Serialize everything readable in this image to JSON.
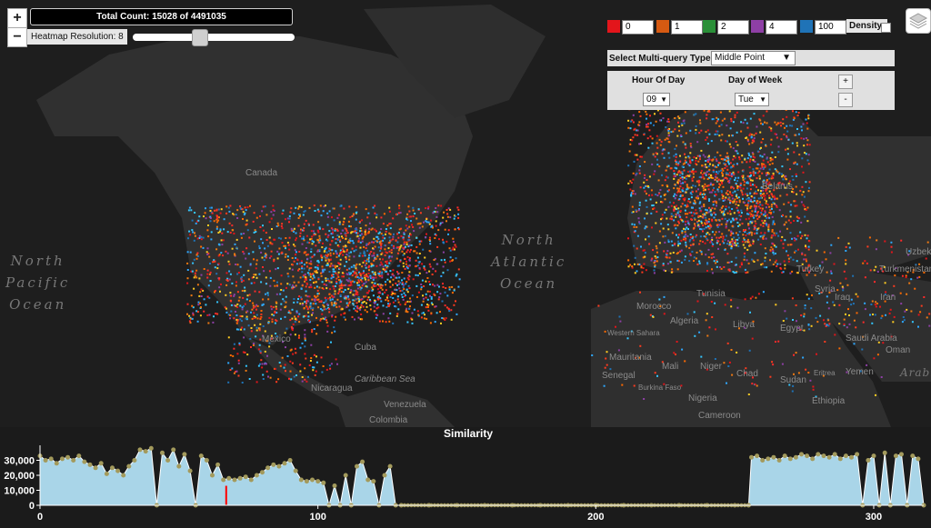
{
  "counter": {
    "text": "Total Count: 15028 of 4491035"
  },
  "zoom": {
    "in": "+",
    "out": "−"
  },
  "heatmap": {
    "label": "Heatmap Resolution: 8",
    "slider_value_fraction": 0.4
  },
  "legend": {
    "items": [
      {
        "color": "#e3151b",
        "value": "0"
      },
      {
        "color": "#d65a12",
        "value": "1"
      },
      {
        "color": "#2a8f38",
        "value": "2"
      },
      {
        "color": "#8e3fa5",
        "value": "4"
      },
      {
        "color": "#1f73b7",
        "value": "100"
      }
    ],
    "density_label": "Density:"
  },
  "multiquery": {
    "label": "Select Multi-query Type:",
    "selected": "Middle Point"
  },
  "time": {
    "hour_label": "Hour Of Day",
    "hour_value": "09",
    "day_label": "Day of Week",
    "day_value": "Tue",
    "plus": "+",
    "minus": "-"
  },
  "map_labels": {
    "canada": "Canada",
    "mexico": "Mexico",
    "cuba": "Cuba",
    "caribbean": "Caribbean Sea",
    "nicaragua": "Nicaragua",
    "venezuela": "Venezuela",
    "colombia": "Colombia",
    "north_pacific": [
      "North",
      "Pacific",
      "Ocean"
    ],
    "north_atlantic": [
      "North",
      "Atlantic",
      "Ocean"
    ],
    "morocco": "Morocco",
    "algeria": "Algeria",
    "libya": "Libya",
    "egypt": "Egypt",
    "tunisia": "Tunisia",
    "mauritania": "Mauritania",
    "mali": "Mali",
    "niger": "Niger",
    "chad": "Chad",
    "sudan": "Sudan",
    "senegal": "Senegal",
    "nigeria": "Nigeria",
    "ethiopia": "Ethiopia",
    "cameroon": "Cameroon",
    "eritrea": "Eritrea",
    "burkina": "Burkina Faso",
    "western_sahara": "Western Sahara",
    "turkey": "Turkey",
    "syria": "Syria",
    "iraq": "Iraq",
    "iran": "Iran",
    "saudi": "Saudi Arabia",
    "oman": "Oman",
    "yemen": "Yemen",
    "turkmenistan": "Turkmenistan",
    "uzbekistan": "Uzbek",
    "belarus": "Belarus",
    "arabian": "Arabi"
  },
  "chart_data": {
    "type": "area",
    "title": "Similarity",
    "x_ticks": [
      0,
      100,
      200,
      300
    ],
    "y_ticks": [
      0,
      10000,
      20000,
      30000
    ],
    "y_tick_labels": [
      "0",
      "10,000",
      "20,000",
      "30,000"
    ],
    "xlim": [
      0,
      318
    ],
    "ylim": [
      0,
      40000
    ],
    "fill_color": "#a9d5e8",
    "marker_color": "#a39a5c",
    "highlight_x": 67,
    "highlight_color": "#ff0000",
    "x": [
      0,
      2,
      4,
      6,
      8,
      10,
      12,
      14,
      16,
      18,
      20,
      22,
      24,
      26,
      28,
      30,
      32,
      34,
      36,
      38,
      40,
      42,
      44,
      46,
      48,
      50,
      52,
      54,
      56,
      58,
      60,
      62,
      64,
      66,
      68,
      70,
      72,
      74,
      76,
      78,
      80,
      82,
      84,
      86,
      88,
      90,
      92,
      94,
      96,
      98,
      100,
      102,
      104,
      106,
      108,
      110,
      112,
      114,
      116,
      118,
      120,
      122,
      124,
      126,
      128,
      130,
      140,
      150,
      160,
      170,
      180,
      190,
      200,
      210,
      220,
      230,
      240,
      250,
      255,
      256,
      258,
      260,
      262,
      264,
      266,
      268,
      270,
      272,
      274,
      276,
      278,
      280,
      282,
      284,
      286,
      288,
      290,
      292,
      294,
      296,
      298,
      300,
      302,
      304,
      306,
      308,
      310,
      312,
      314,
      316,
      318
    ],
    "y": [
      33000,
      30000,
      31000,
      28000,
      31000,
      32000,
      30000,
      33000,
      29000,
      27000,
      25000,
      28000,
      21000,
      25000,
      23000,
      20000,
      26000,
      30000,
      37000,
      36000,
      38000,
      0,
      35000,
      30000,
      37000,
      26000,
      34000,
      23000,
      0,
      33000,
      30000,
      20000,
      27000,
      17000,
      18000,
      17000,
      18000,
      19000,
      17000,
      20000,
      22000,
      25000,
      27000,
      26000,
      28000,
      30000,
      23000,
      17000,
      16000,
      17000,
      16000,
      15000,
      0,
      13000,
      0,
      20000,
      0,
      26000,
      29000,
      17000,
      16000,
      0,
      20000,
      26000,
      0,
      0,
      0,
      0,
      0,
      0,
      0,
      0,
      0,
      0,
      0,
      0,
      0,
      0,
      0,
      32000,
      33000,
      30000,
      31000,
      32000,
      30000,
      33000,
      31000,
      32000,
      34000,
      33000,
      31000,
      34000,
      33000,
      32000,
      34000,
      31000,
      33000,
      32000,
      34000,
      0,
      30000,
      33000,
      0,
      35000,
      0,
      33000,
      34000,
      0,
      33000,
      31000,
      0
    ]
  }
}
